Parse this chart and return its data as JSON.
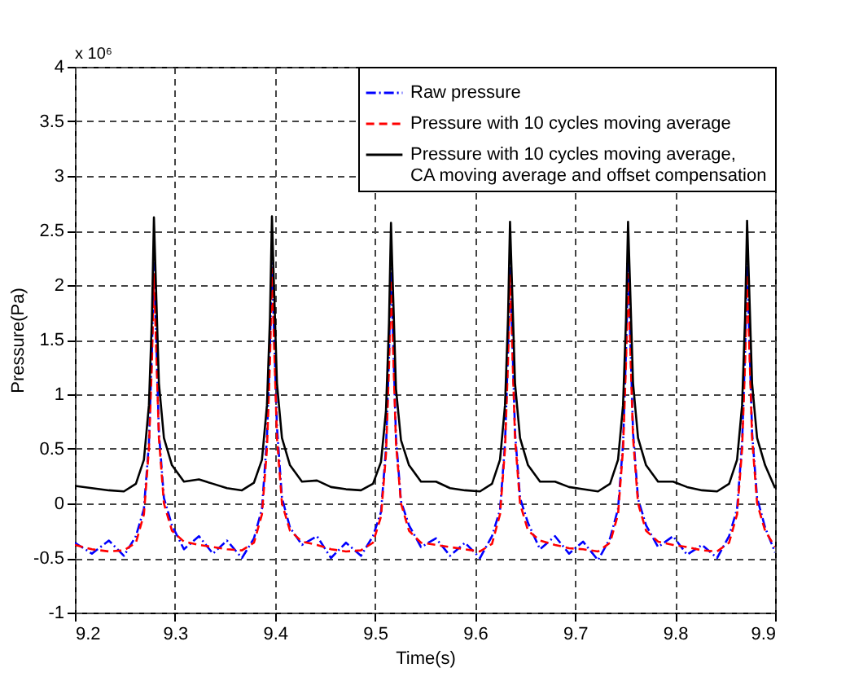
{
  "chart_data": {
    "type": "line",
    "xlabel": "Time(s)",
    "ylabel": "Pressure(Pa)",
    "annotations": [
      "x 10⁶"
    ],
    "x": [
      9.2,
      9.217,
      9.234,
      9.249,
      9.261,
      9.269,
      9.274,
      9.277,
      9.279,
      9.281,
      9.284,
      9.289,
      9.297,
      9.309,
      9.324,
      9.338,
      9.352,
      9.367,
      9.379,
      9.387,
      9.392,
      9.395,
      9.397,
      9.399,
      9.402,
      9.407,
      9.415,
      9.427,
      9.442,
      9.456,
      9.471,
      9.486,
      9.498,
      9.506,
      9.511,
      9.514,
      9.516,
      9.518,
      9.521,
      9.526,
      9.534,
      9.546,
      9.561,
      9.575,
      9.59,
      9.605,
      9.617,
      9.625,
      9.63,
      9.633,
      9.635,
      9.637,
      9.64,
      9.645,
      9.653,
      9.665,
      9.68,
      9.694,
      9.708,
      9.723,
      9.735,
      9.743,
      9.748,
      9.751,
      9.753,
      9.755,
      9.758,
      9.763,
      9.771,
      9.783,
      9.798,
      9.812,
      9.827,
      9.842,
      9.854,
      9.862,
      9.867,
      9.87,
      9.872,
      9.874,
      9.877,
      9.882,
      9.89,
      9.9
    ],
    "series": [
      {
        "name": "Raw pressure",
        "color": "#0000ff",
        "line_style": "dashdot",
        "values": [
          -0.36,
          -0.46,
          -0.34,
          -0.48,
          -0.3,
          -0.05,
          0.55,
          1.4,
          2.2,
          1.6,
          0.65,
          0.05,
          -0.2,
          -0.42,
          -0.3,
          -0.46,
          -0.34,
          -0.5,
          -0.32,
          -0.05,
          0.6,
          1.45,
          2.2,
          1.6,
          0.7,
          0.05,
          -0.22,
          -0.38,
          -0.3,
          -0.5,
          -0.36,
          -0.48,
          -0.3,
          -0.08,
          0.5,
          1.35,
          2.15,
          1.55,
          0.6,
          0.02,
          -0.2,
          -0.4,
          -0.32,
          -0.48,
          -0.36,
          -0.5,
          -0.3,
          -0.06,
          0.55,
          1.4,
          2.2,
          1.6,
          0.65,
          0.05,
          -0.18,
          -0.42,
          -0.3,
          -0.46,
          -0.35,
          -0.52,
          -0.32,
          -0.05,
          0.55,
          1.4,
          2.2,
          1.6,
          0.65,
          0.04,
          -0.2,
          -0.4,
          -0.3,
          -0.47,
          -0.38,
          -0.5,
          -0.3,
          -0.05,
          0.55,
          1.4,
          2.2,
          1.6,
          0.65,
          0.05,
          -0.22,
          -0.45
        ]
      },
      {
        "name": "Pressure with 10 cycles moving average",
        "color": "#ff0000",
        "line_style": "dashed",
        "values": [
          -0.38,
          -0.42,
          -0.44,
          -0.43,
          -0.36,
          -0.1,
          0.5,
          1.3,
          2.1,
          1.5,
          0.6,
          0.0,
          -0.25,
          -0.35,
          -0.38,
          -0.4,
          -0.42,
          -0.43,
          -0.36,
          -0.1,
          0.5,
          1.3,
          2.15,
          1.5,
          0.6,
          0.0,
          -0.25,
          -0.35,
          -0.38,
          -0.42,
          -0.44,
          -0.43,
          -0.36,
          -0.12,
          0.45,
          1.25,
          2.05,
          1.45,
          0.55,
          0.0,
          -0.25,
          -0.36,
          -0.38,
          -0.4,
          -0.42,
          -0.44,
          -0.37,
          -0.1,
          0.5,
          1.3,
          2.1,
          1.5,
          0.6,
          0.0,
          -0.25,
          -0.34,
          -0.38,
          -0.41,
          -0.42,
          -0.44,
          -0.36,
          -0.1,
          0.5,
          1.3,
          2.1,
          1.5,
          0.6,
          0.0,
          -0.25,
          -0.35,
          -0.38,
          -0.4,
          -0.43,
          -0.44,
          -0.36,
          -0.1,
          0.5,
          1.3,
          2.1,
          1.5,
          0.6,
          0.0,
          -0.25,
          -0.4
        ]
      },
      {
        "name": "Pressure with 10 cycles moving average,\nCA moving average and offset compensation",
        "color": "#000000",
        "line_style": "solid",
        "values": [
          0.16,
          0.14,
          0.12,
          0.11,
          0.18,
          0.4,
          0.9,
          1.7,
          2.62,
          2.0,
          1.1,
          0.6,
          0.35,
          0.2,
          0.22,
          0.18,
          0.14,
          0.12,
          0.19,
          0.4,
          0.9,
          1.7,
          2.63,
          2.0,
          1.1,
          0.6,
          0.35,
          0.2,
          0.21,
          0.15,
          0.13,
          0.12,
          0.18,
          0.38,
          0.85,
          1.65,
          2.57,
          1.95,
          1.05,
          0.58,
          0.35,
          0.2,
          0.2,
          0.14,
          0.12,
          0.11,
          0.18,
          0.4,
          0.9,
          1.7,
          2.58,
          2.0,
          1.1,
          0.6,
          0.35,
          0.2,
          0.2,
          0.15,
          0.13,
          0.11,
          0.18,
          0.4,
          0.9,
          1.7,
          2.58,
          2.0,
          1.1,
          0.6,
          0.35,
          0.2,
          0.2,
          0.15,
          0.12,
          0.11,
          0.18,
          0.4,
          0.9,
          1.7,
          2.59,
          2.0,
          1.1,
          0.6,
          0.35,
          0.14
        ]
      }
    ],
    "xlim": [
      9.2,
      9.9
    ],
    "xticks": [
      9.2,
      9.3,
      9.4,
      9.5,
      9.6,
      9.7,
      9.8,
      9.9
    ],
    "ylim": [
      -1,
      4
    ],
    "yticks": [
      -1,
      -0.5,
      0,
      0.5,
      1,
      1.5,
      2,
      2.5,
      3,
      3.5,
      4
    ],
    "grid": true,
    "legend": "top right",
    "marker": "none"
  }
}
